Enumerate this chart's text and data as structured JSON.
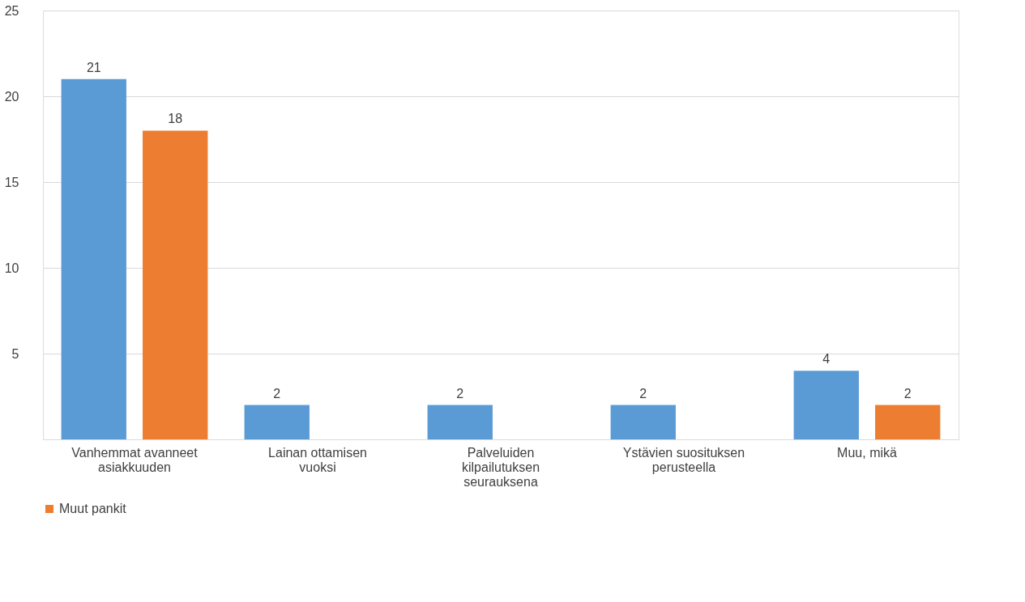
{
  "chart_data": {
    "type": "bar",
    "categories": [
      "Vanhemmat avanneet asiakkuuden",
      "Lainan ottamisen vuoksi",
      "Palveluiden kilpailutuksen seurauksena",
      "Ystävien suosituksen perusteella",
      "Muu, mikä"
    ],
    "series": [
      {
        "color": "#5b9bd5",
        "values": [
          21,
          2,
          2,
          2,
          4
        ]
      },
      {
        "name": "Muut pankit",
        "color": "#ed7d31",
        "values": [
          18,
          null,
          null,
          null,
          2
        ]
      }
    ],
    "ylim": [
      0,
      25
    ],
    "yticks": [
      {
        "value": 0,
        "label": null
      },
      5,
      10,
      15,
      20,
      25
    ],
    "grid": "y",
    "legend": "bottom",
    "data_labels": true
  }
}
